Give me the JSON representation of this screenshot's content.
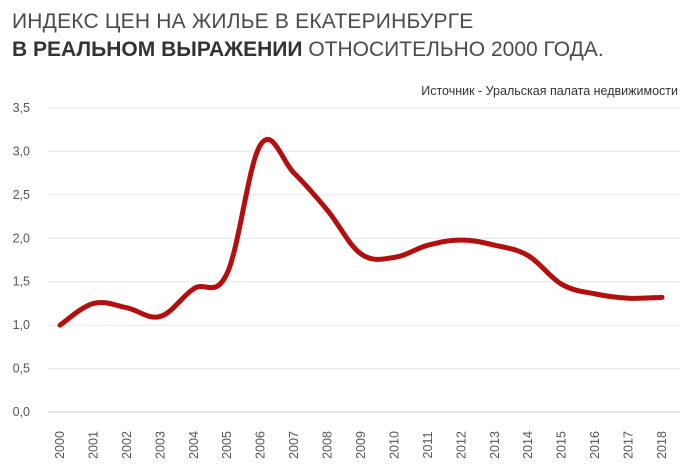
{
  "title": {
    "line1": "ИНДЕКС ЦЕН НА ЖИЛЬЕ В ЕКАТЕРИНБУРГЕ",
    "line2_bold": "В РЕАЛЬНОМ ВЫРАЖЕНИИ",
    "line2_rest": " ОТНОСИТЕЛЬНО 2000 ГОДА."
  },
  "source": "Источник - Уральская палата недвижимости",
  "chart_data": {
    "type": "line",
    "x": [
      "2000",
      "2001",
      "2002",
      "2003",
      "2004",
      "2005",
      "2006",
      "2007",
      "2008",
      "2009",
      "2010",
      "2011",
      "2012",
      "2013",
      "2014",
      "2015",
      "2016",
      "2017",
      "2018"
    ],
    "series": [
      {
        "values": [
          1.0,
          1.25,
          1.2,
          1.1,
          1.42,
          1.6,
          3.08,
          2.75,
          2.32,
          1.82,
          1.78,
          1.92,
          1.98,
          1.92,
          1.8,
          1.47,
          1.36,
          1.31,
          1.32
        ]
      }
    ],
    "ylim": [
      0,
      3.5
    ],
    "yticks": [
      "0,0",
      "0,5",
      "1,0",
      "1,5",
      "2,0",
      "2,5",
      "3,0",
      "3,5"
    ],
    "grid": true,
    "line_color": "#b30f0f"
  }
}
